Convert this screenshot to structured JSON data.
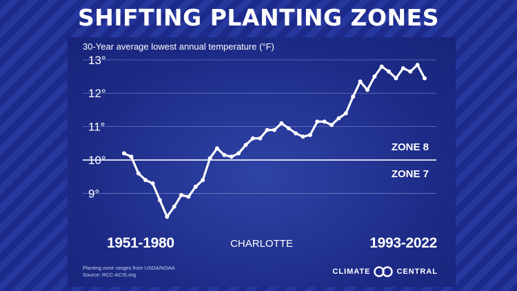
{
  "headline": "SHIFTING PLANTING ZONES",
  "subtitle": "30-Year average lowest annual temperature (°F)",
  "location": "CHARLOTTE",
  "period_start": "1951-1980",
  "period_end": "1993-2022",
  "notes": [
    "Planting zone ranges from USDA/NOAA",
    "Source: RCC-ACIS.org"
  ],
  "logo": {
    "left": "CLIMATE",
    "right": "CENTRAL",
    "icon": "climate-central-logo-icon"
  },
  "colors": {
    "background": "#1c2a8a",
    "panel": "#243599",
    "line": "#ffffff",
    "grid": "#8e9bd6"
  },
  "chart_data": {
    "type": "line",
    "title": "",
    "xlabel": "",
    "ylabel": "30-Year average lowest annual temperature (°F)",
    "x_start": "1951-1980",
    "x_end": "1993-2022",
    "ylim": [
      8.1,
      13.1
    ],
    "yticks": [
      9,
      10,
      11,
      12,
      13
    ],
    "ytick_labels": [
      "9°",
      "10°",
      "11°",
      "12°",
      "13°"
    ],
    "grid": true,
    "series": [
      {
        "name": "",
        "values": [
          10.2,
          10.1,
          9.6,
          9.4,
          9.3,
          8.8,
          8.3,
          8.6,
          8.95,
          8.9,
          9.2,
          9.4,
          10.05,
          10.35,
          10.15,
          10.1,
          10.2,
          10.45,
          10.65,
          10.65,
          10.9,
          10.9,
          11.1,
          10.95,
          10.8,
          10.7,
          10.75,
          11.15,
          11.15,
          11.05,
          11.25,
          11.4,
          11.9,
          12.35,
          12.1,
          12.5,
          12.8,
          12.65,
          12.45,
          12.75,
          12.65,
          12.85,
          12.45
        ]
      }
    ],
    "reference_line": {
      "value": 10,
      "label_above": "ZONE 8",
      "label_below": "ZONE 7"
    }
  }
}
